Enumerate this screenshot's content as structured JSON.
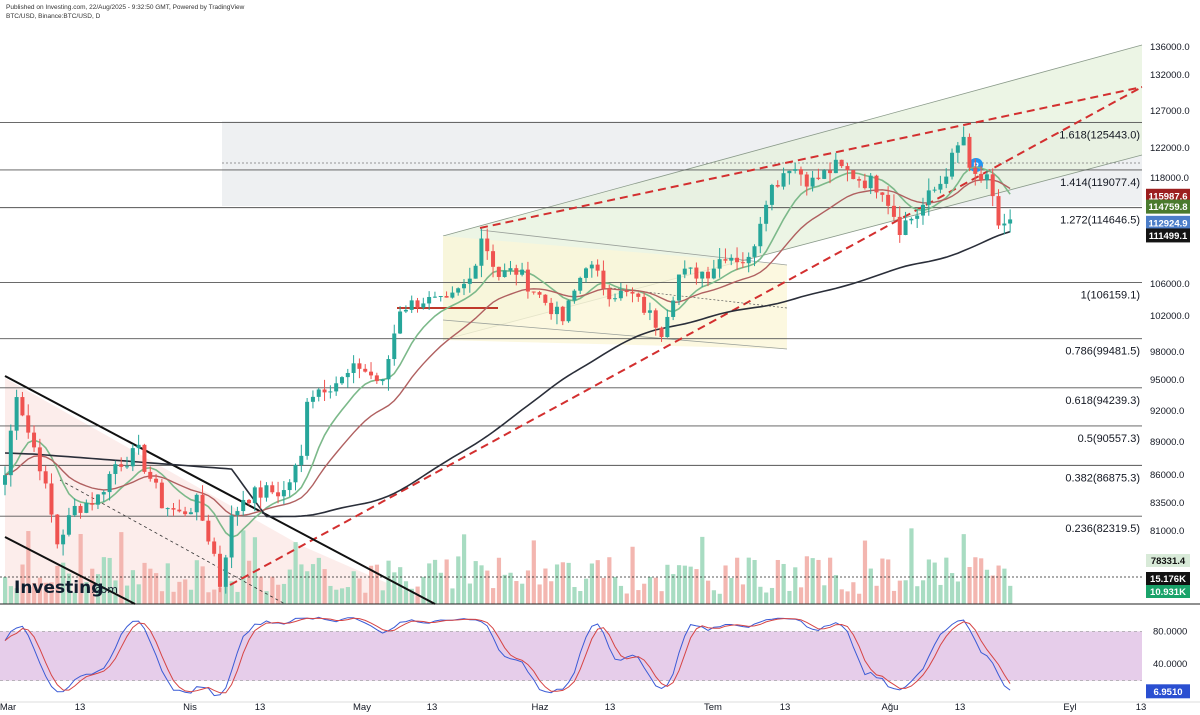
{
  "header": {
    "published": "Published on Investing.com, 22/Aug/2025 - 9:32:50 GMT, Powered by TradingView",
    "symbol": "BTC/USD, Binance:BTC/USD, D"
  },
  "logo": {
    "name": "Investing",
    "suffix": ".com"
  },
  "colors": {
    "up": "#26a69a",
    "down": "#ef5350",
    "sma_long": "#2a2e39",
    "ema_fast": "#7cb98a",
    "ema_slow": "#b06060",
    "channel_fill": "#e6f2dc",
    "fib_zone": "#eef0f2",
    "stoch_bg": "#e6cdea",
    "stoch_k": "#3b5bd6",
    "stoch_d": "#d64545"
  },
  "chart_data": [
    {
      "type": "candlestick",
      "title": "",
      "series_name": "BTC/USD",
      "x_ticks": [
        "Mar",
        "13",
        "Nis",
        "13",
        "May",
        "13",
        "Haz",
        "13",
        "Tem",
        "13",
        "Ağu",
        "13",
        "Eyl",
        "13"
      ],
      "y_ticks": [
        136000,
        132000,
        127000,
        122000,
        118000,
        106000,
        102000,
        98000,
        95000,
        92000,
        89000,
        86000,
        83500,
        81000
      ],
      "y_tick_labels": [
        "136000.0",
        "132000.0",
        "127000.0",
        "122000.0",
        "118000.0",
        "106000.0",
        "102000.0",
        "98000.0",
        "95000.0",
        "92000.0",
        "89000.0",
        "86000.0",
        "83500.0",
        "81000.0"
      ],
      "ylim": [
        75500,
        137000
      ],
      "x_days": [
        "2025-03-01",
        "2025-09-16"
      ],
      "fib_levels": [
        {
          "label": "1.618(125443.0)",
          "value": 125443.0
        },
        {
          "label": "1.414(119077.4)",
          "value": 119077.4
        },
        {
          "label": "1.272(114646.5)",
          "value": 114646.5
        },
        {
          "label": "1(106159.1)",
          "value": 106159.1
        },
        {
          "label": "0.786(99481.5)",
          "value": 99481.5
        },
        {
          "label": "0.618(94239.3)",
          "value": 94239.3
        },
        {
          "label": "0.5(90557.3)",
          "value": 90557.3
        },
        {
          "label": "0.382(86875.3)",
          "value": 86875.3
        },
        {
          "label": "0.236(82319.5)",
          "value": 82319.5
        }
      ],
      "price_tags": [
        {
          "label": "115987.6",
          "value": 115987.6,
          "color": "#9c1f1f"
        },
        {
          "label": "114759.8",
          "value": 114759.8,
          "color": "#4a7a2e"
        },
        {
          "label": "112924.9",
          "value": 112924.9,
          "color": "#4c7ec9"
        },
        {
          "label": "111499.1",
          "value": 111499.1,
          "color": "#141414"
        }
      ],
      "anchor_closes": [
        [
          "2025-03-01",
          86000
        ],
        [
          "2025-03-03",
          94000
        ],
        [
          "2025-03-05",
          90000
        ],
        [
          "2025-03-07",
          87000
        ],
        [
          "2025-03-10",
          80000
        ],
        [
          "2025-03-13",
          83000
        ],
        [
          "2025-03-17",
          84000
        ],
        [
          "2025-03-20",
          87000
        ],
        [
          "2025-03-24",
          88000
        ],
        [
          "2025-03-28",
          83500
        ],
        [
          "2025-03-31",
          82500
        ],
        [
          "2025-04-03",
          83500
        ],
        [
          "2025-04-06",
          79000
        ],
        [
          "2025-04-07",
          76500
        ],
        [
          "2025-04-09",
          82000
        ],
        [
          "2025-04-11",
          84000
        ],
        [
          "2025-04-15",
          84500
        ],
        [
          "2025-04-18",
          84500
        ],
        [
          "2025-04-21",
          87500
        ],
        [
          "2025-04-22",
          93500
        ],
        [
          "2025-04-25",
          94500
        ],
        [
          "2025-04-28",
          95000
        ],
        [
          "2025-05-01",
          96500
        ],
        [
          "2025-05-05",
          94500
        ],
        [
          "2025-05-08",
          103000
        ],
        [
          "2025-05-12",
          104000
        ],
        [
          "2025-05-16",
          103500
        ],
        [
          "2025-05-20",
          106500
        ],
        [
          "2025-05-22",
          111500
        ],
        [
          "2025-05-25",
          107000
        ],
        [
          "2025-05-28",
          107500
        ],
        [
          "2025-06-01",
          104500
        ],
        [
          "2025-06-05",
          101500
        ],
        [
          "2025-06-09",
          108500
        ],
        [
          "2025-06-13",
          105000
        ],
        [
          "2025-06-17",
          104500
        ],
        [
          "2025-06-22",
          100500
        ],
        [
          "2025-06-25",
          107000
        ],
        [
          "2025-06-30",
          107500
        ],
        [
          "2025-07-03",
          109500
        ],
        [
          "2025-07-07",
          108500
        ],
        [
          "2025-07-10",
          116000
        ],
        [
          "2025-07-14",
          119800
        ],
        [
          "2025-07-18",
          117500
        ],
        [
          "2025-07-22",
          119500
        ],
        [
          "2025-07-26",
          118000
        ],
        [
          "2025-07-30",
          117000
        ],
        [
          "2025-08-02",
          112500
        ],
        [
          "2025-08-05",
          114000
        ],
        [
          "2025-08-09",
          117500
        ],
        [
          "2025-08-13",
          123500
        ],
        [
          "2025-08-14",
          118500
        ],
        [
          "2025-08-17",
          117500
        ],
        [
          "2025-08-19",
          112800
        ],
        [
          "2025-08-21",
          112900
        ]
      ],
      "volume_axis_labels": [
        "78331.4",
        "15.176K",
        "10.931K"
      ],
      "indicators": [
        "EMA fast",
        "EMA slow",
        "SMA long"
      ]
    },
    {
      "type": "line",
      "title": "",
      "series": [
        {
          "name": "%K"
        },
        {
          "name": "%D"
        }
      ],
      "y_ticks": [
        80,
        40
      ],
      "y_tick_labels": [
        "80.0000",
        "40.0000"
      ],
      "ylim": [
        0,
        100
      ],
      "band": [
        20,
        80
      ],
      "current": {
        "label": "6.9510",
        "value": 6.951
      }
    }
  ]
}
